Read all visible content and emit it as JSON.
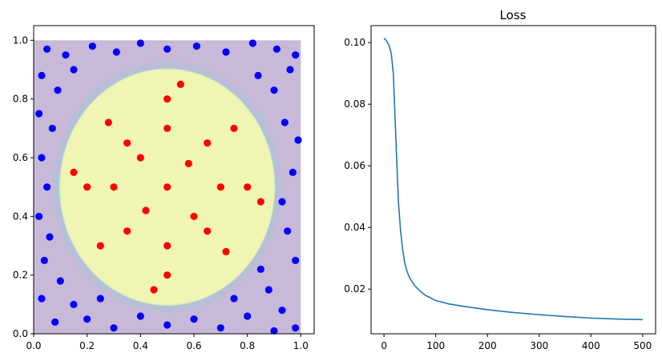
{
  "chart_data": [
    {
      "type": "scatter",
      "title": "",
      "xlabel": "",
      "ylabel": "",
      "xlim": [
        0.0,
        1.05
      ],
      "ylim": [
        0.0,
        1.05
      ],
      "grid": false,
      "x_ticks": [
        "0.0",
        "0.2",
        "0.4",
        "0.6",
        "0.8",
        "1.0"
      ],
      "y_ticks": [
        "0.0",
        "0.2",
        "0.4",
        "0.6",
        "0.8",
        "1.0"
      ],
      "decision_region": {
        "description": "filled contour over [0,1]x[0,1]: yellow disc centered (0.5,0.5) radius ~0.4 on purple background",
        "center": [
          0.5,
          0.5
        ],
        "radius": 0.4,
        "inside_color": "#f1f5b4",
        "outside_color": "#c8b9d9",
        "contour_color": "#7fd4cf"
      },
      "series": [
        {
          "color": "#0000ff",
          "rule": "points with distance from (0.5,0.5) > 0.4",
          "points": [
            [
              0.05,
              0.97
            ],
            [
              0.12,
              0.95
            ],
            [
              0.22,
              0.98
            ],
            [
              0.31,
              0.96
            ],
            [
              0.4,
              0.99
            ],
            [
              0.5,
              0.97
            ],
            [
              0.61,
              0.98
            ],
            [
              0.72,
              0.96
            ],
            [
              0.82,
              0.99
            ],
            [
              0.91,
              0.97
            ],
            [
              0.98,
              0.95
            ],
            [
              0.03,
              0.88
            ],
            [
              0.09,
              0.83
            ],
            [
              0.15,
              0.9
            ],
            [
              0.84,
              0.88
            ],
            [
              0.9,
              0.83
            ],
            [
              0.96,
              0.9
            ],
            [
              0.02,
              0.75
            ],
            [
              0.07,
              0.7
            ],
            [
              0.94,
              0.72
            ],
            [
              0.99,
              0.66
            ],
            [
              0.03,
              0.6
            ],
            [
              0.05,
              0.5
            ],
            [
              0.97,
              0.55
            ],
            [
              0.93,
              0.45
            ],
            [
              0.02,
              0.4
            ],
            [
              0.06,
              0.33
            ],
            [
              0.95,
              0.35
            ],
            [
              0.98,
              0.25
            ],
            [
              0.04,
              0.25
            ],
            [
              0.1,
              0.18
            ],
            [
              0.15,
              0.1
            ],
            [
              0.88,
              0.15
            ],
            [
              0.93,
              0.08
            ],
            [
              0.03,
              0.12
            ],
            [
              0.08,
              0.04
            ],
            [
              0.2,
              0.05
            ],
            [
              0.3,
              0.02
            ],
            [
              0.4,
              0.06
            ],
            [
              0.5,
              0.03
            ],
            [
              0.6,
              0.05
            ],
            [
              0.7,
              0.02
            ],
            [
              0.8,
              0.06
            ],
            [
              0.9,
              0.01
            ],
            [
              0.98,
              0.02
            ],
            [
              0.25,
              0.12
            ],
            [
              0.75,
              0.12
            ],
            [
              0.85,
              0.22
            ]
          ]
        },
        {
          "color": "#ff0000",
          "rule": "points with distance from (0.5,0.5) <= 0.4",
          "points": [
            [
              0.5,
              0.5
            ],
            [
              0.4,
              0.6
            ],
            [
              0.6,
              0.4
            ],
            [
              0.3,
              0.5
            ],
            [
              0.7,
              0.5
            ],
            [
              0.5,
              0.3
            ],
            [
              0.5,
              0.7
            ],
            [
              0.35,
              0.35
            ],
            [
              0.65,
              0.65
            ],
            [
              0.35,
              0.65
            ],
            [
              0.65,
              0.35
            ],
            [
              0.2,
              0.5
            ],
            [
              0.8,
              0.5
            ],
            [
              0.5,
              0.2
            ],
            [
              0.5,
              0.8
            ],
            [
              0.25,
              0.3
            ],
            [
              0.75,
              0.7
            ],
            [
              0.28,
              0.72
            ],
            [
              0.72,
              0.28
            ],
            [
              0.15,
              0.55
            ],
            [
              0.85,
              0.45
            ],
            [
              0.45,
              0.15
            ],
            [
              0.55,
              0.85
            ],
            [
              0.42,
              0.42
            ],
            [
              0.58,
              0.58
            ]
          ]
        }
      ]
    },
    {
      "type": "line",
      "title": "Loss",
      "xlabel": "",
      "ylabel": "",
      "xlim": [
        -25,
        525
      ],
      "ylim": [
        0.0055,
        0.1055
      ],
      "grid": false,
      "x_ticks": [
        "0",
        "100",
        "200",
        "300",
        "400",
        "500"
      ],
      "y_ticks": [
        "0.02",
        "0.04",
        "0.06",
        "0.08",
        "0.10"
      ],
      "series": [
        {
          "color": "#1f77b4",
          "x": [
            0,
            5,
            10,
            14,
            18,
            22,
            25,
            28,
            32,
            36,
            40,
            45,
            50,
            60,
            70,
            80,
            100,
            125,
            150,
            200,
            250,
            300,
            350,
            400,
            450,
            500
          ],
          "y": [
            0.1015,
            0.1005,
            0.099,
            0.0965,
            0.09,
            0.073,
            0.06,
            0.048,
            0.039,
            0.033,
            0.0285,
            0.0255,
            0.0235,
            0.021,
            0.0193,
            0.018,
            0.0163,
            0.0152,
            0.0145,
            0.0133,
            0.0124,
            0.0117,
            0.0111,
            0.0106,
            0.0103,
            0.0101
          ]
        }
      ]
    }
  ]
}
